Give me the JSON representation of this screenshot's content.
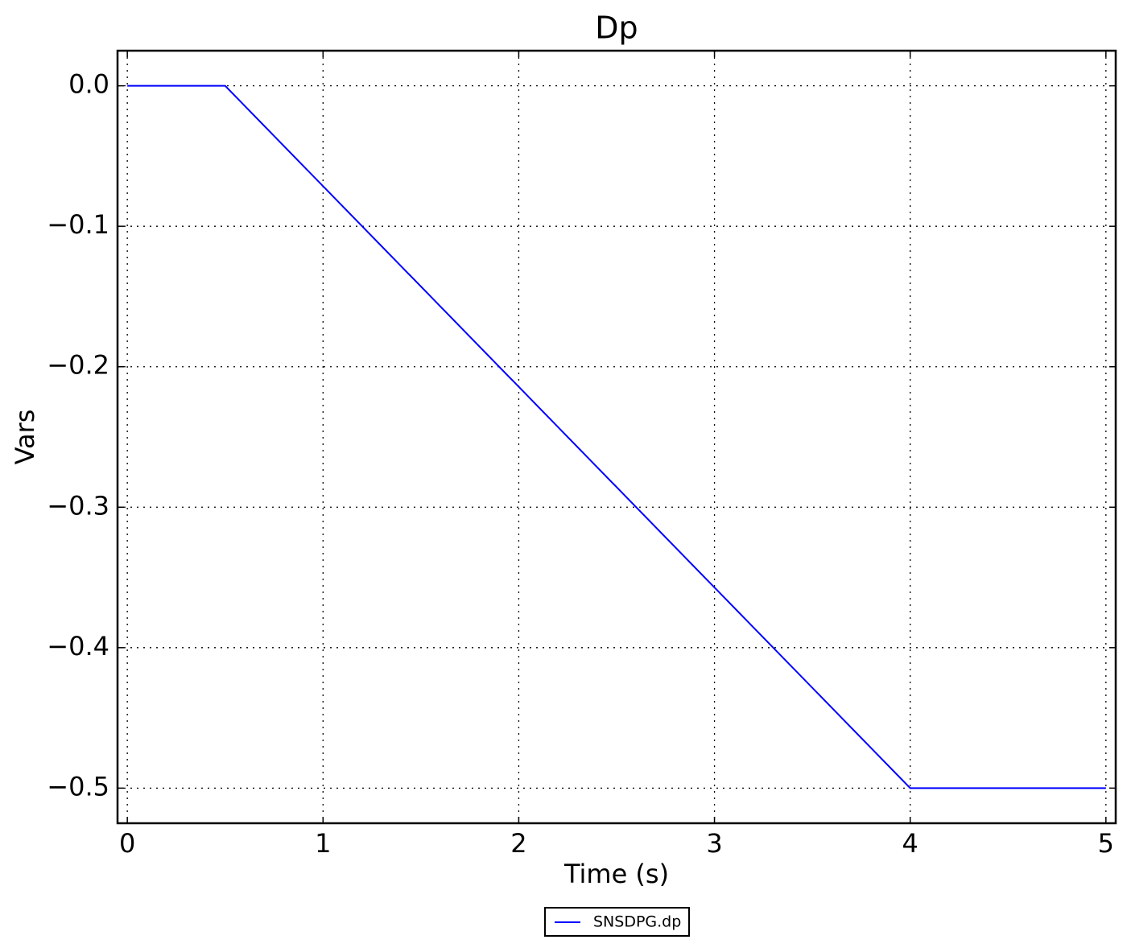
{
  "chart_data": {
    "type": "line",
    "title": "Dp",
    "x_label": "Time (s)",
    "y_label": "Vars",
    "x": [
      0,
      0.5,
      4,
      5
    ],
    "series": [
      {
        "name": "SNSDPG.dp",
        "color": "#0000ff",
        "values": [
          0,
          0,
          -0.5,
          -0.5
        ]
      }
    ],
    "xlim": [
      -0.05,
      5.05
    ],
    "xticks": [
      0,
      1,
      2,
      3,
      4,
      5
    ],
    "ylim": [
      -0.525,
      0.025
    ],
    "yticks": [
      {
        "value": 0,
        "label": "0.0"
      },
      {
        "value": -0.1,
        "label": "−0.1"
      },
      {
        "value": -0.2,
        "label": "−0.2"
      },
      {
        "value": -0.3,
        "label": "−0.3"
      },
      {
        "value": -0.4,
        "label": "−0.4"
      },
      {
        "value": -0.5,
        "label": "−0.5"
      }
    ],
    "grid": true,
    "legend_position": "bottom"
  }
}
